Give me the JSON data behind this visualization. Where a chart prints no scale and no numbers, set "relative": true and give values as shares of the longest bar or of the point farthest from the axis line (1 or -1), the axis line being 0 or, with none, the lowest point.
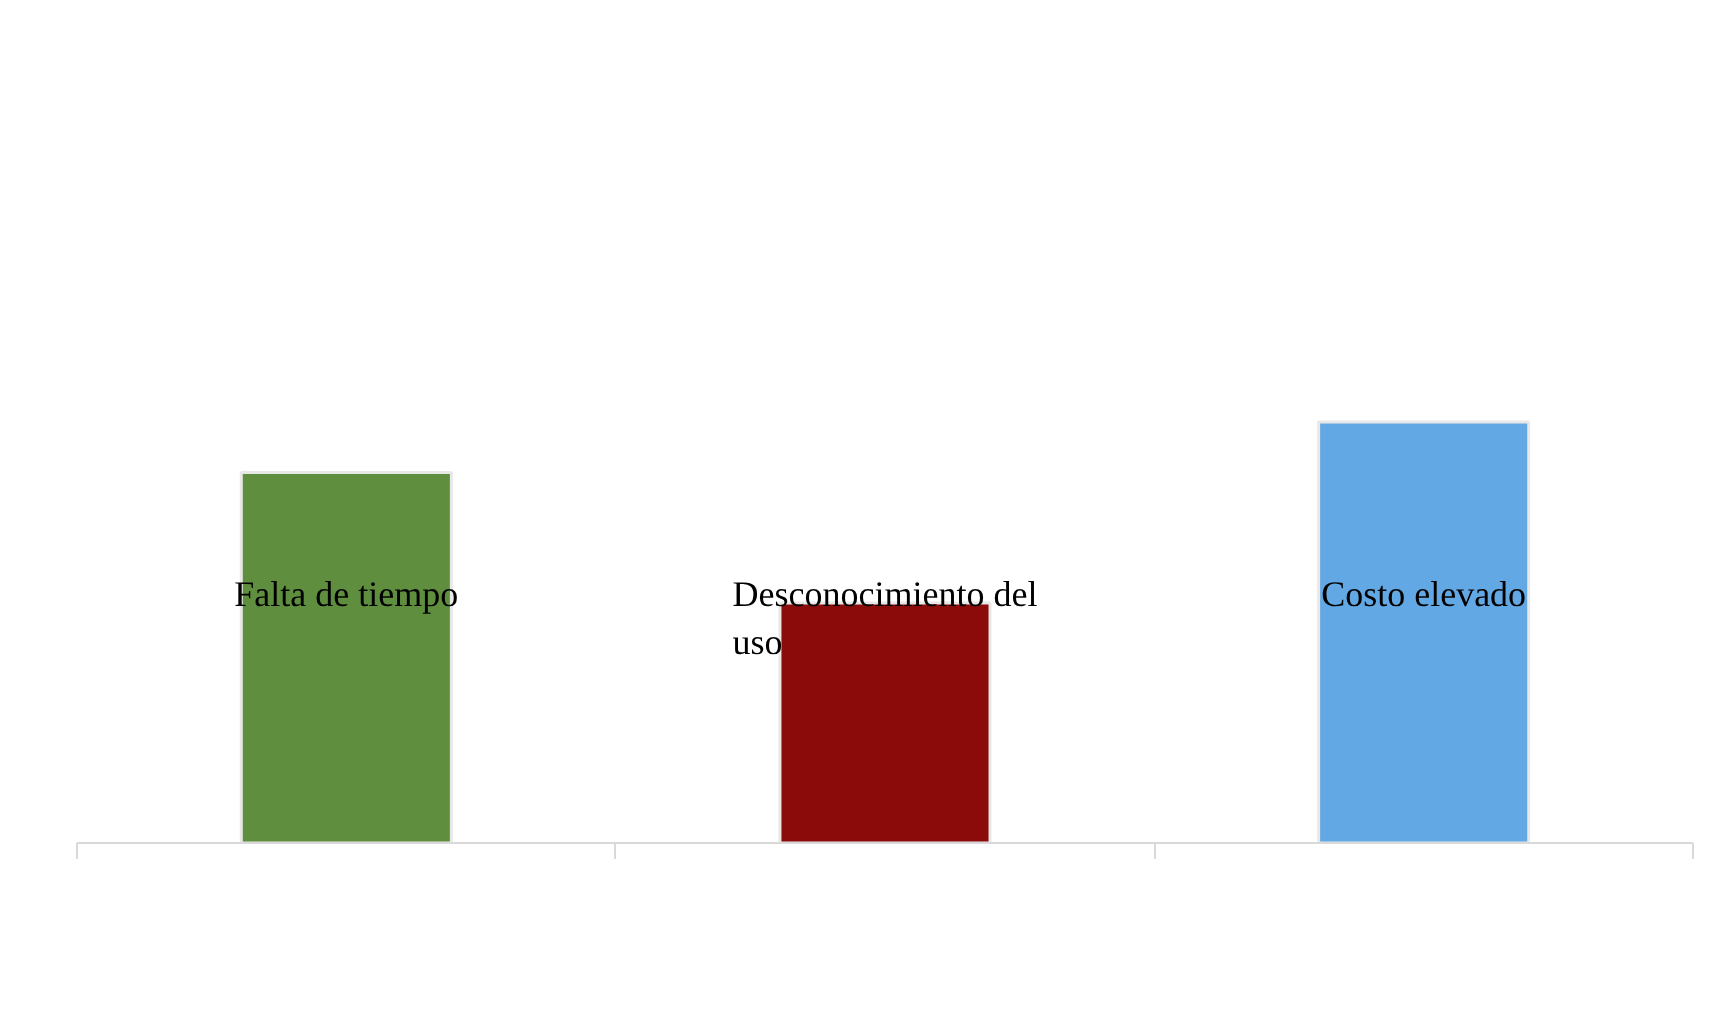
{
  "chart_data": {
    "type": "bar",
    "relative": true,
    "categories": [
      "Falta de tiempo",
      "Desconocimiento del uso",
      "Costo elevado"
    ],
    "values": [
      0.88,
      0.57,
      1
    ],
    "colors": [
      "#5e8e3e",
      "#8b0a0a",
      "#62a8e4"
    ]
  }
}
